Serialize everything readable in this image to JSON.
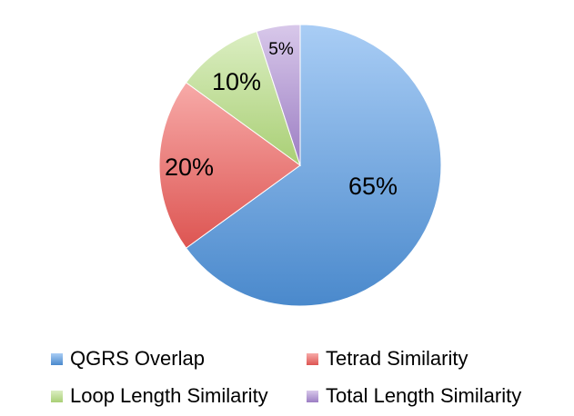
{
  "chart_data": {
    "type": "pie",
    "title": "",
    "slices": [
      {
        "name": "QGRS Overlap",
        "value": 65,
        "label": "65%",
        "color": "#5b9bd5",
        "color_light": "#a9cdf5",
        "color_dark": "#4a89cc"
      },
      {
        "name": "Tetrad Similarity",
        "value": 20,
        "label": "20%",
        "color": "#e96563",
        "color_light": "#f7aaa8",
        "color_dark": "#dd5552"
      },
      {
        "name": "Loop Length Similarity",
        "value": 10,
        "label": "10%",
        "color": "#b8d98a",
        "color_light": "#dbeec2",
        "color_dark": "#a9cf75"
      },
      {
        "name": "Total Length Similarity",
        "value": 5,
        "label": "5%",
        "color": "#a88bcb",
        "color_light": "#d8c8ea",
        "color_dark": "#9c7ec3"
      }
    ],
    "start_angle_deg": 0,
    "direction": "clockwise",
    "legend_position": "bottom"
  }
}
